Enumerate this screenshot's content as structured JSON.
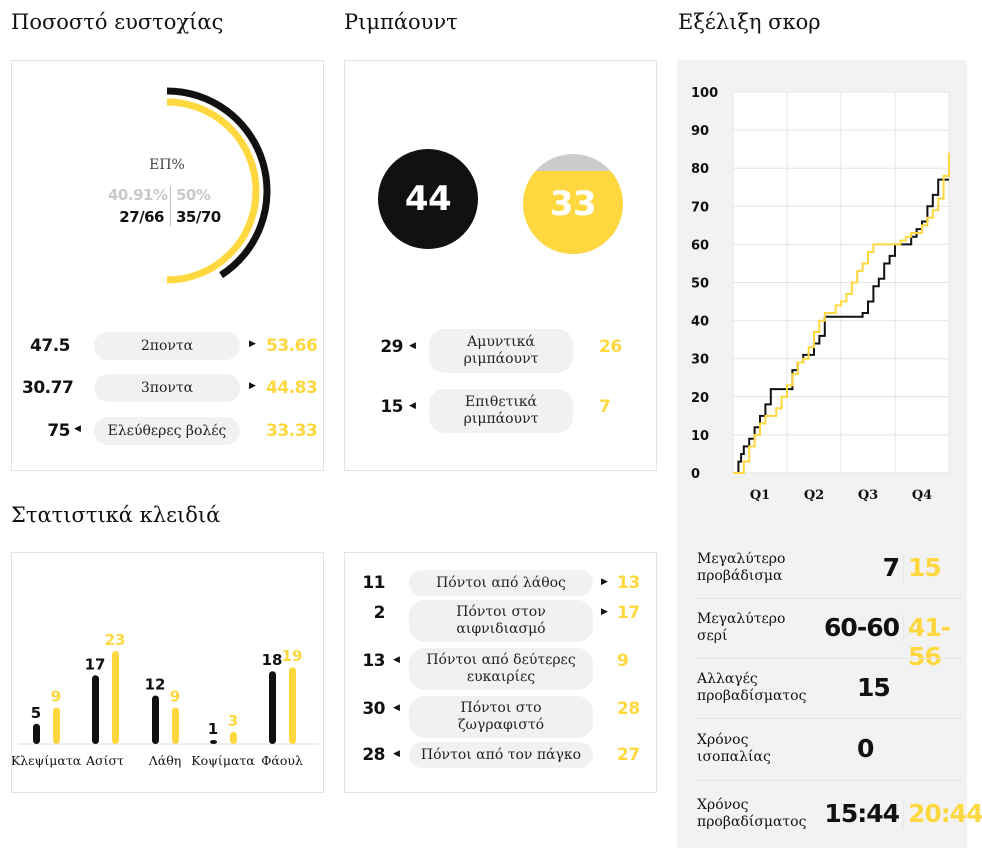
{
  "headings": {
    "shooting": "Ποσοστό ευστοχίας",
    "rebounds": "Ριμπάουντ",
    "score_progress": "Εξέλιξη σκορ",
    "key_stats": "Στατιστικά κλειδιά"
  },
  "colors": {
    "team_a": "#111111",
    "team_b": "#ffd840",
    "grey": "#cccccc"
  },
  "shooting": {
    "ring_label": "ΕΠ%",
    "team_a_pct": "40.91%",
    "team_b_pct": "50%",
    "team_a_made": "27/66",
    "team_b_made": "35/70",
    "team_a_frac": 0.4091,
    "team_b_frac": 0.5,
    "rows": [
      {
        "a": "47.5",
        "label": "2ποντα",
        "b": "53.66",
        "arrow": "right"
      },
      {
        "a": "30.77",
        "label": "3ποντα",
        "b": "44.83",
        "arrow": "right"
      },
      {
        "a": "75",
        "label": "Ελεύθερες βολές",
        "b": "33.33",
        "arrow": "left"
      }
    ]
  },
  "rebounds": {
    "team_a_total": "44",
    "team_b_total": "33",
    "team_b_fill_frac": 0.83,
    "rows": [
      {
        "a": "29",
        "label_l1": "Αμυντικά",
        "label_l2": "ριμπάουντ",
        "b": "26",
        "arrow": "left"
      },
      {
        "a": "15",
        "label_l1": "Επιθετικά",
        "label_l2": "ριμπάουντ",
        "b": "7",
        "arrow": "left"
      }
    ]
  },
  "key_stats": {
    "categories": [
      "Κλεψίματα",
      "Ασίστ",
      "Λάθη",
      "Κοψίματα",
      "Φάουλ"
    ],
    "team_a": [
      5,
      17,
      12,
      1,
      18
    ],
    "team_b": [
      9,
      23,
      9,
      3,
      19
    ]
  },
  "points": {
    "rows": [
      {
        "a": "11",
        "label_l1": "Πόντοι από λάθος",
        "label_l2": "",
        "b": "13",
        "arrow": "right"
      },
      {
        "a": "2",
        "label_l1": "Πόντοι στον",
        "label_l2": "αιφνιδιασμό",
        "b": "17",
        "arrow": "right"
      },
      {
        "a": "13",
        "label_l1": "Πόντοι από δεύτερες",
        "label_l2": "ευκαιρίες",
        "b": "9",
        "arrow": "left"
      },
      {
        "a": "30",
        "label_l1": "Πόντοι στο",
        "label_l2": "ζωγραφιστό",
        "b": "28",
        "arrow": "left"
      },
      {
        "a": "28",
        "label_l1": "Πόντοι από τον πάγκο",
        "label_l2": "",
        "b": "27",
        "arrow": "left"
      }
    ]
  },
  "chart_data": {
    "type": "line",
    "title": "Εξέλιξη σκορ",
    "x_ticks": [
      "Q1",
      "Q2",
      "Q3",
      "Q4"
    ],
    "y_ticks": [
      "0",
      "10",
      "20",
      "30",
      "40",
      "50",
      "60",
      "70",
      "80",
      "90",
      "100"
    ],
    "xlim": [
      0,
      40
    ],
    "ylim": [
      0,
      100
    ],
    "series": [
      {
        "color": "#111111",
        "x": [
          0,
          1,
          1.5,
          2,
          3,
          4,
          5,
          6,
          7,
          8,
          9,
          10,
          11,
          12,
          13,
          14,
          15,
          16,
          17,
          18,
          19,
          20,
          21,
          22,
          23,
          24,
          25,
          26,
          27,
          28,
          29,
          30,
          31,
          32,
          33,
          34,
          35,
          36,
          37,
          38,
          39,
          40
        ],
        "y": [
          0,
          3,
          5,
          7,
          9,
          12,
          15,
          18,
          22,
          22,
          22,
          22,
          27,
          29,
          31,
          31,
          34,
          36,
          41,
          41,
          41,
          41,
          41,
          41,
          41,
          42,
          45,
          49,
          51,
          55,
          57,
          60,
          60,
          60,
          62,
          64,
          66,
          70,
          73,
          77,
          77,
          77
        ]
      },
      {
        "color": "#ffd840",
        "x": [
          0,
          1,
          2,
          3,
          4,
          5,
          6,
          7,
          8,
          9,
          10,
          11,
          12,
          13,
          14,
          15,
          16,
          17,
          18,
          19,
          20,
          21,
          22,
          23,
          24,
          25,
          26,
          27,
          28,
          29,
          30,
          31,
          32,
          33,
          34,
          35,
          36,
          37,
          38,
          39,
          40
        ],
        "y": [
          0,
          0,
          3,
          7,
          10,
          13,
          15,
          15,
          17,
          20,
          23,
          26,
          29,
          30,
          33,
          37,
          40,
          42,
          42,
          44,
          45,
          47,
          50,
          53,
          55,
          58,
          60,
          60,
          60,
          60,
          60,
          61,
          62,
          63,
          63,
          65,
          67,
          69,
          72,
          78,
          84
        ]
      }
    ]
  },
  "summary": {
    "rows": [
      {
        "label": "Μεγαλύτερο προβάδισμα",
        "a": "7",
        "b": "15",
        "single": ""
      },
      {
        "label": "Μεγαλύτερο σερί",
        "a": "60-60",
        "b": "41-56",
        "single": ""
      },
      {
        "label": "Αλλαγές προβαδίσματος",
        "a": "",
        "b": "",
        "single": "15"
      },
      {
        "label": "Χρόνος ισοπαλίας",
        "a": "",
        "b": "",
        "single": "0"
      },
      {
        "label": "Χρόνος προβαδίσματος",
        "a": "15:44",
        "b": "20:44",
        "single": ""
      }
    ]
  }
}
